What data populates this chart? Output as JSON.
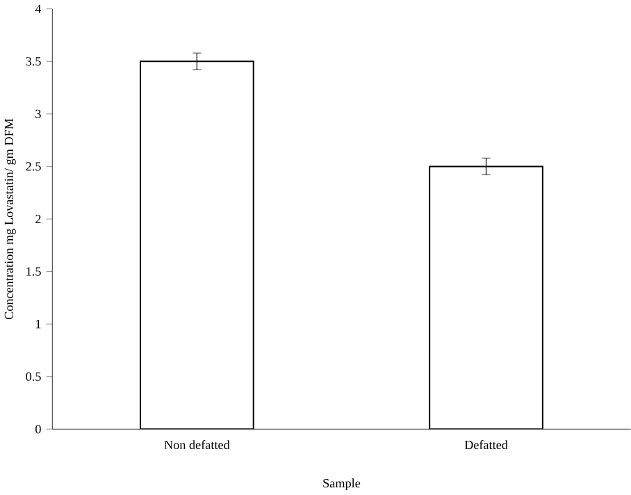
{
  "chart_data": {
    "type": "bar",
    "xlabel": "Sample",
    "ylabel": "Concentration mg Lovastatin/ gm DFM",
    "categories": [
      "Non defatted",
      "Defatted"
    ],
    "values": [
      3.5,
      2.5
    ],
    "errors": [
      0.08,
      0.08
    ],
    "color": "#ffffff",
    "ylim": [
      0,
      4
    ],
    "yticks": [
      0,
      0.5,
      1,
      1.5,
      2,
      2.5,
      3,
      3.5,
      4
    ],
    "grid": false
  }
}
